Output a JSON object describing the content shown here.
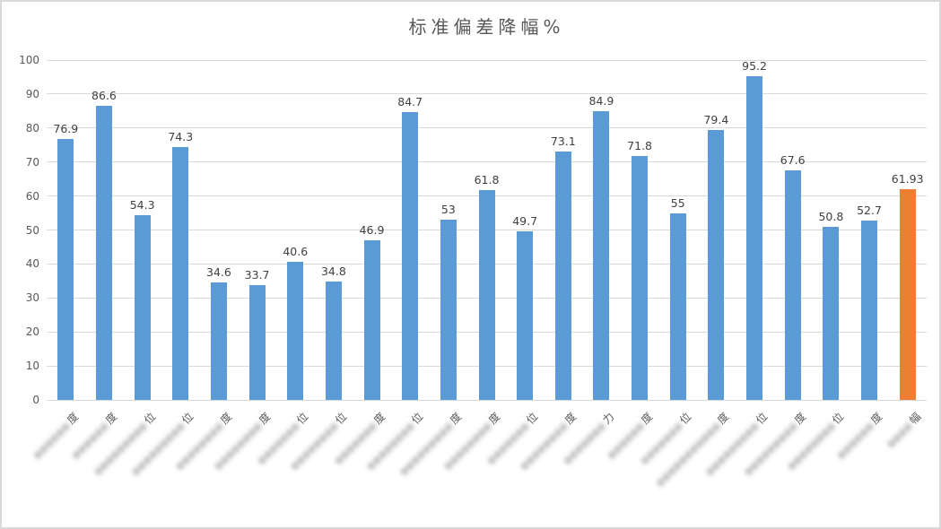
{
  "chart_data": {
    "type": "bar",
    "title": "标准偏差降幅%",
    "xlabel": "",
    "ylabel": "",
    "ylim": [
      0,
      100
    ],
    "y_ticks": [
      0,
      10,
      20,
      30,
      40,
      50,
      60,
      70,
      80,
      90,
      100
    ],
    "grid": true,
    "legend": "none",
    "values": [
      76.9,
      86.6,
      54.3,
      74.3,
      34.6,
      33.7,
      40.6,
      34.8,
      46.9,
      84.7,
      53,
      61.8,
      49.7,
      73.1,
      84.9,
      71.8,
      55,
      79.4,
      95.2,
      67.6,
      50.8,
      52.7,
      61.93
    ],
    "data_labels": [
      "76.9",
      "86.6",
      "54.3",
      "74.3",
      "34.6",
      "33.7",
      "40.6",
      "34.8",
      "46.9",
      "84.7",
      "53",
      "61.8",
      "49.7",
      "73.1",
      "84.9",
      "71.8",
      "55",
      "79.4",
      "95.2",
      "67.6",
      "50.8",
      "52.7",
      "61.93"
    ],
    "categories": [
      {
        "masked": "●●●●●●",
        "suffix": "度"
      },
      {
        "masked": "●●●●●●",
        "suffix": "度"
      },
      {
        "masked": "●●●●●●●●●",
        "suffix": "位"
      },
      {
        "masked": "●●●●●●●●●",
        "suffix": "位"
      },
      {
        "masked": "●●●●●●●●",
        "suffix": "度"
      },
      {
        "masked": "●●●●●●●●",
        "suffix": "度"
      },
      {
        "masked": "●●●●●●●",
        "suffix": "位"
      },
      {
        "masked": "●●●●●●●●",
        "suffix": "位"
      },
      {
        "masked": "●●●●●●●",
        "suffix": "度"
      },
      {
        "masked": "●●●●●●●●",
        "suffix": "位"
      },
      {
        "masked": "●●●●●●●●●",
        "suffix": "度"
      },
      {
        "masked": "●●●●●●●●",
        "suffix": "度"
      },
      {
        "masked": "●●●●●●●",
        "suffix": "位"
      },
      {
        "masked": "●●●●●●●●",
        "suffix": "度"
      },
      {
        "masked": "●●●●●●●",
        "suffix": "力"
      },
      {
        "masked": "●●●●●●",
        "suffix": "度"
      },
      {
        "masked": "●●●●●●●",
        "suffix": "位"
      },
      {
        "masked": "●●●●●●●●●●●",
        "suffix": "度"
      },
      {
        "masked": "●●●●●●●●●",
        "suffix": "位"
      },
      {
        "masked": "●●●●●●●●●",
        "suffix": "度"
      },
      {
        "masked": "●●●●●●●●",
        "suffix": "位"
      },
      {
        "masked": "●●●●●●",
        "suffix": "度"
      },
      {
        "masked": "●●●●",
        "suffix": "幅"
      }
    ],
    "highlight_index": 22,
    "colors": {
      "bar_default": "#5B9BD5",
      "bar_highlight": "#ED7D31",
      "gridline": "#D9D9D9",
      "axis_text": "#595959",
      "data_label_text": "#404040",
      "frame_border": "#D9D9D9",
      "background": "#FFFFFF"
    }
  }
}
